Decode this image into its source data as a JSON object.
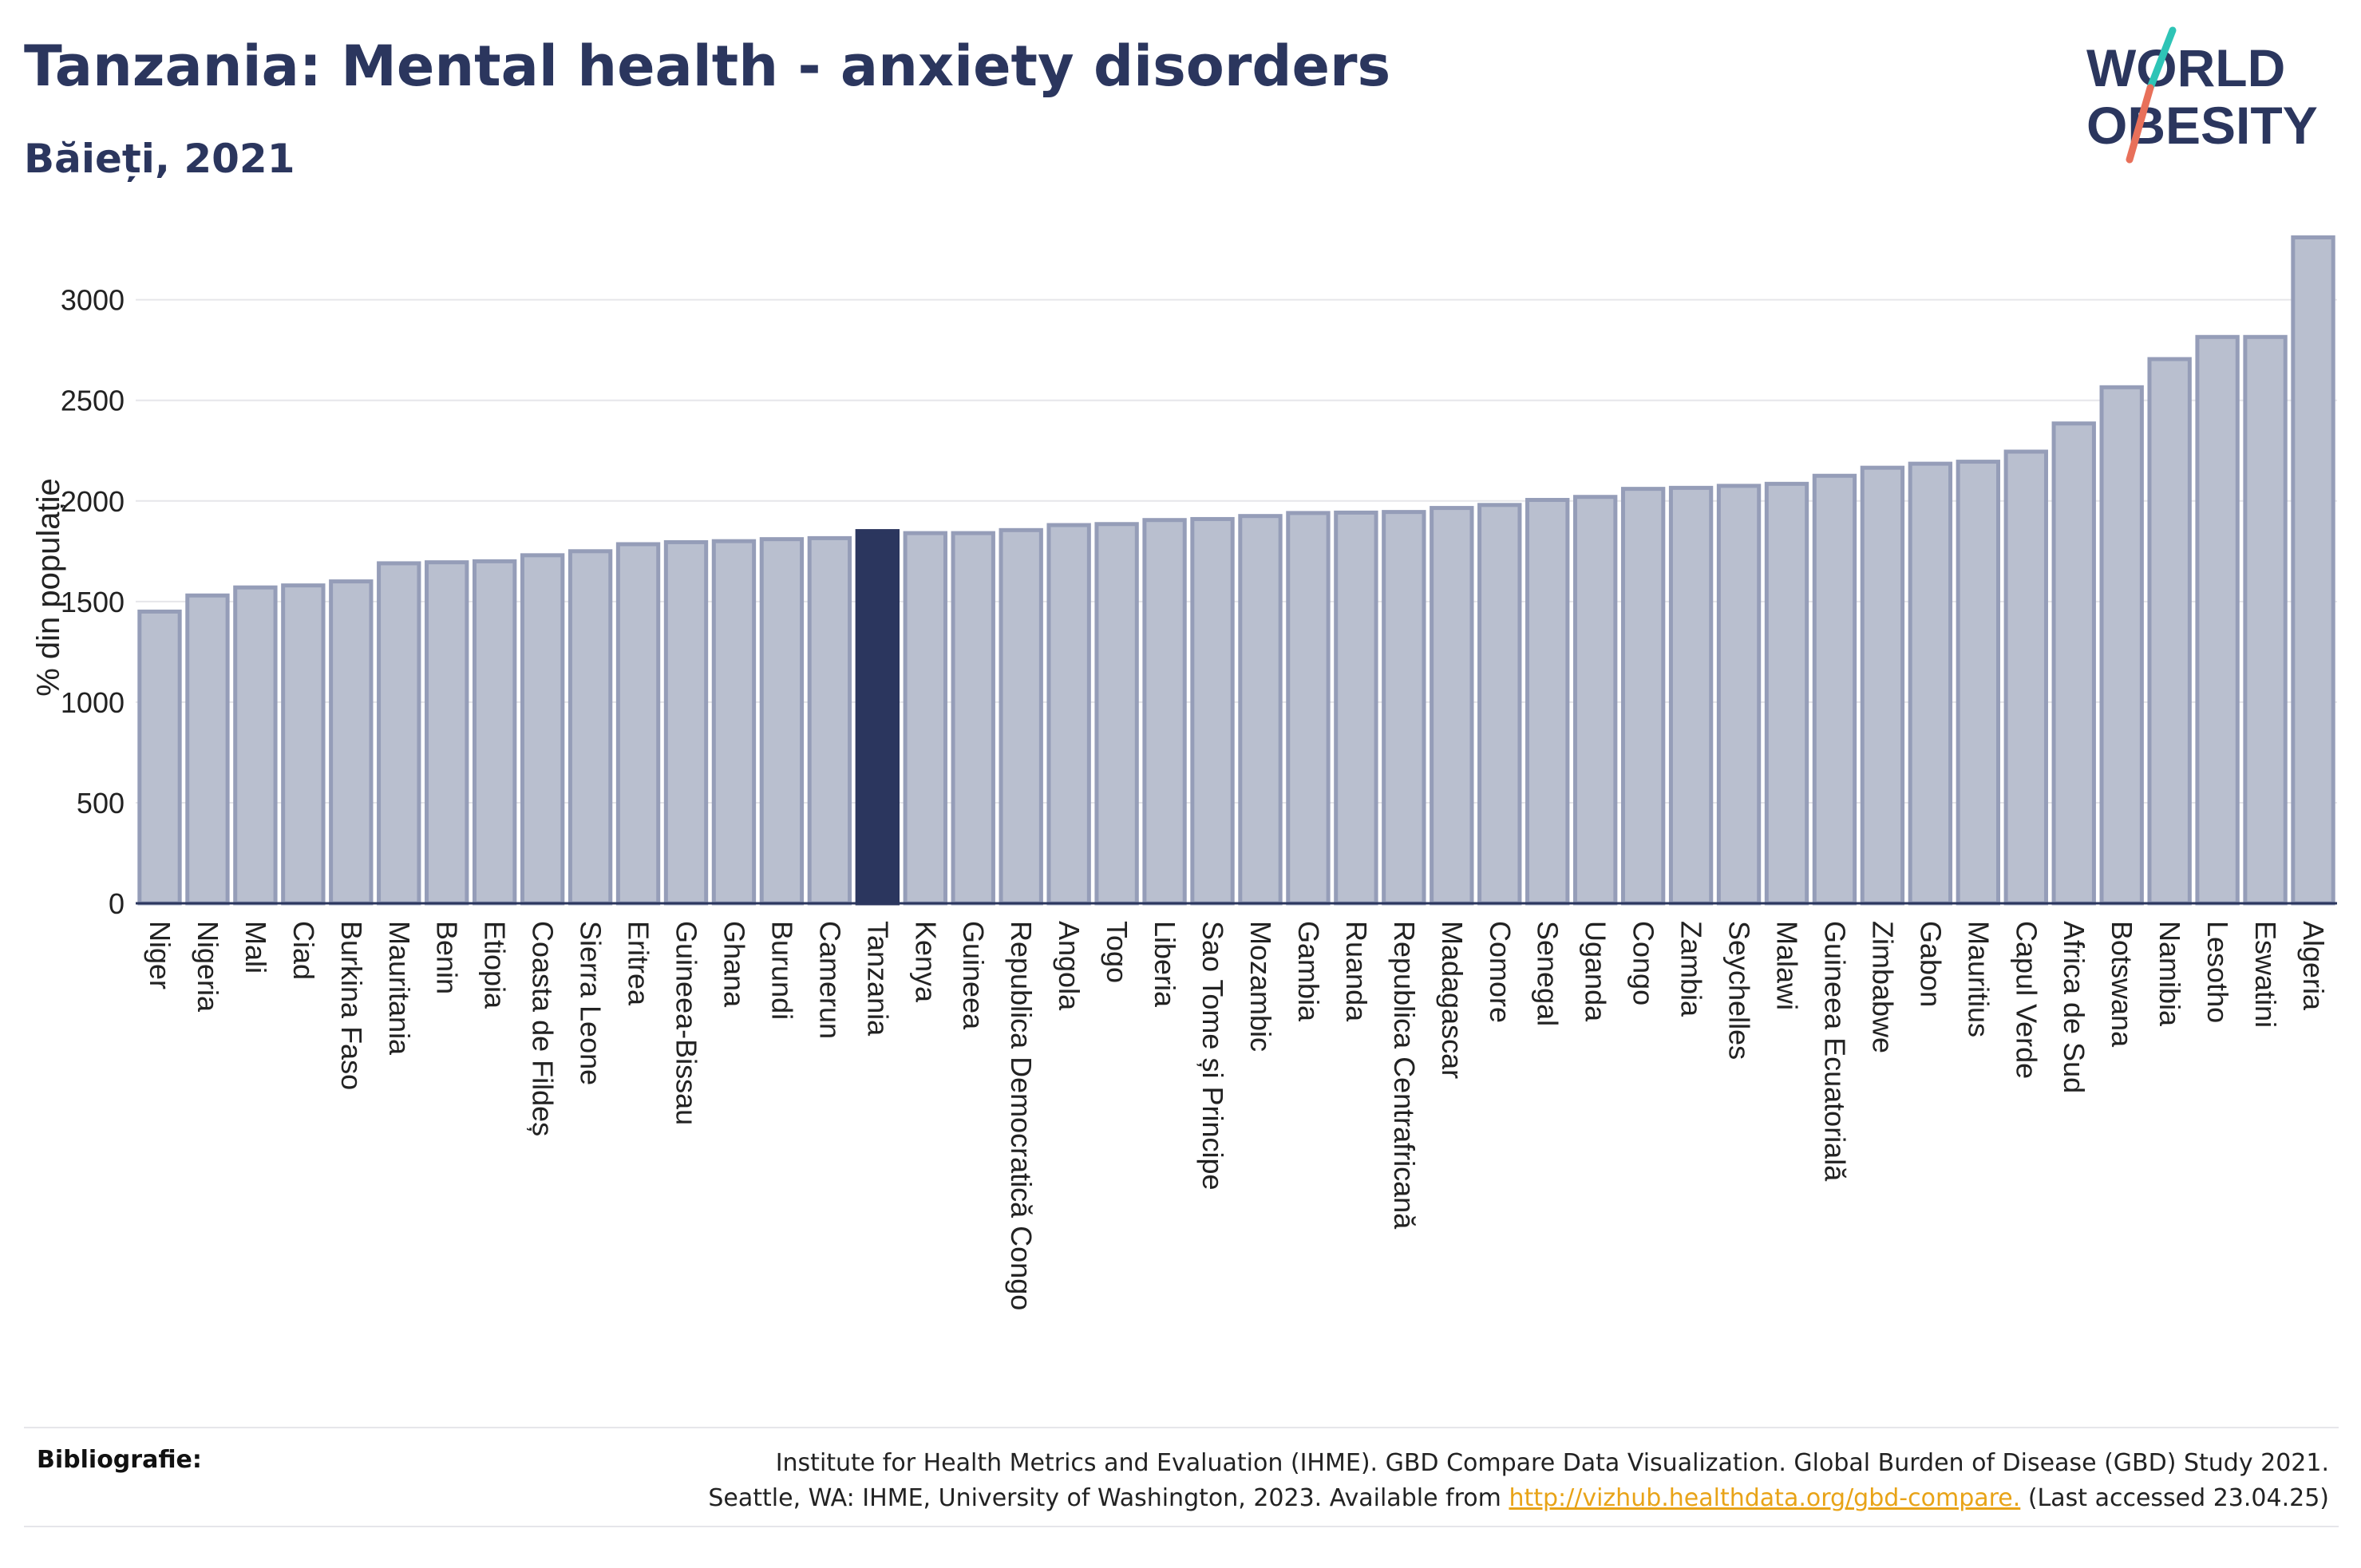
{
  "header": {
    "title": "Tanzania: Mental health - anxiety disorders",
    "subtitle": "Băieți, 2021"
  },
  "logo": {
    "line1": "WORLD",
    "line2": "OBESITY",
    "colors": {
      "text": "#2b365e",
      "slash_teal": "#2ec4b6",
      "slash_coral": "#e8705a"
    }
  },
  "chart_data": {
    "type": "bar",
    "ylabel": "% din populație",
    "ylim": [
      0,
      3300
    ],
    "yticks": [
      0,
      500,
      1000,
      1500,
      2000,
      2500,
      3000
    ],
    "grid": true,
    "highlight": "Tanzania",
    "colors": {
      "bar": "#b9bfcf",
      "bar_border": "#959db8",
      "highlight": "#2b365e"
    },
    "categories": [
      "Niger",
      "Nigeria",
      "Mali",
      "Ciad",
      "Burkina Faso",
      "Mauritania",
      "Benin",
      "Etiopia",
      "Coasta de Fildeș",
      "Sierra Leone",
      "Eritrea",
      "Guineea-Bissau",
      "Ghana",
      "Burundi",
      "Camerun",
      "Tanzania",
      "Kenya",
      "Guineea",
      "Republica Democratică Congo",
      "Angola",
      "Togo",
      "Liberia",
      "Sao Tome și Principe",
      "Mozambic",
      "Gambia",
      "Ruanda",
      "Republica Centrafricană",
      "Madagascar",
      "Comore",
      "Senegal",
      "Uganda",
      "Congo",
      "Zambia",
      "Seychelles",
      "Malawi",
      "Guineea Ecuatorială",
      "Zimbabwe",
      "Gabon",
      "Mauritius",
      "Capul Verde",
      "Africa de Sud",
      "Botswana",
      "Namibia",
      "Lesotho",
      "Eswatini",
      "Algeria"
    ],
    "values": [
      1450,
      1530,
      1570,
      1580,
      1600,
      1690,
      1695,
      1700,
      1730,
      1750,
      1785,
      1795,
      1800,
      1810,
      1815,
      1850,
      1840,
      1840,
      1855,
      1880,
      1885,
      1905,
      1910,
      1925,
      1940,
      1942,
      1945,
      1965,
      1980,
      2005,
      2020,
      2060,
      2065,
      2075,
      2085,
      2125,
      2165,
      2185,
      2195,
      2245,
      2385,
      2565,
      2705,
      2815,
      2815,
      3310
    ]
  },
  "footer": {
    "label": "Bibliografie:",
    "line1": "Institute for Health Metrics and Evaluation (IHME). GBD Compare Data Visualization. Global Burden of Disease (GBD) Study 2021.",
    "line2_prefix": "Seattle, WA: IHME, University of Washington, 2023. Available from",
    "link": "http://vizhub.healthdata.org/gbd-compare.",
    "line2_suffix": "(Last accessed 23.04.25)"
  }
}
